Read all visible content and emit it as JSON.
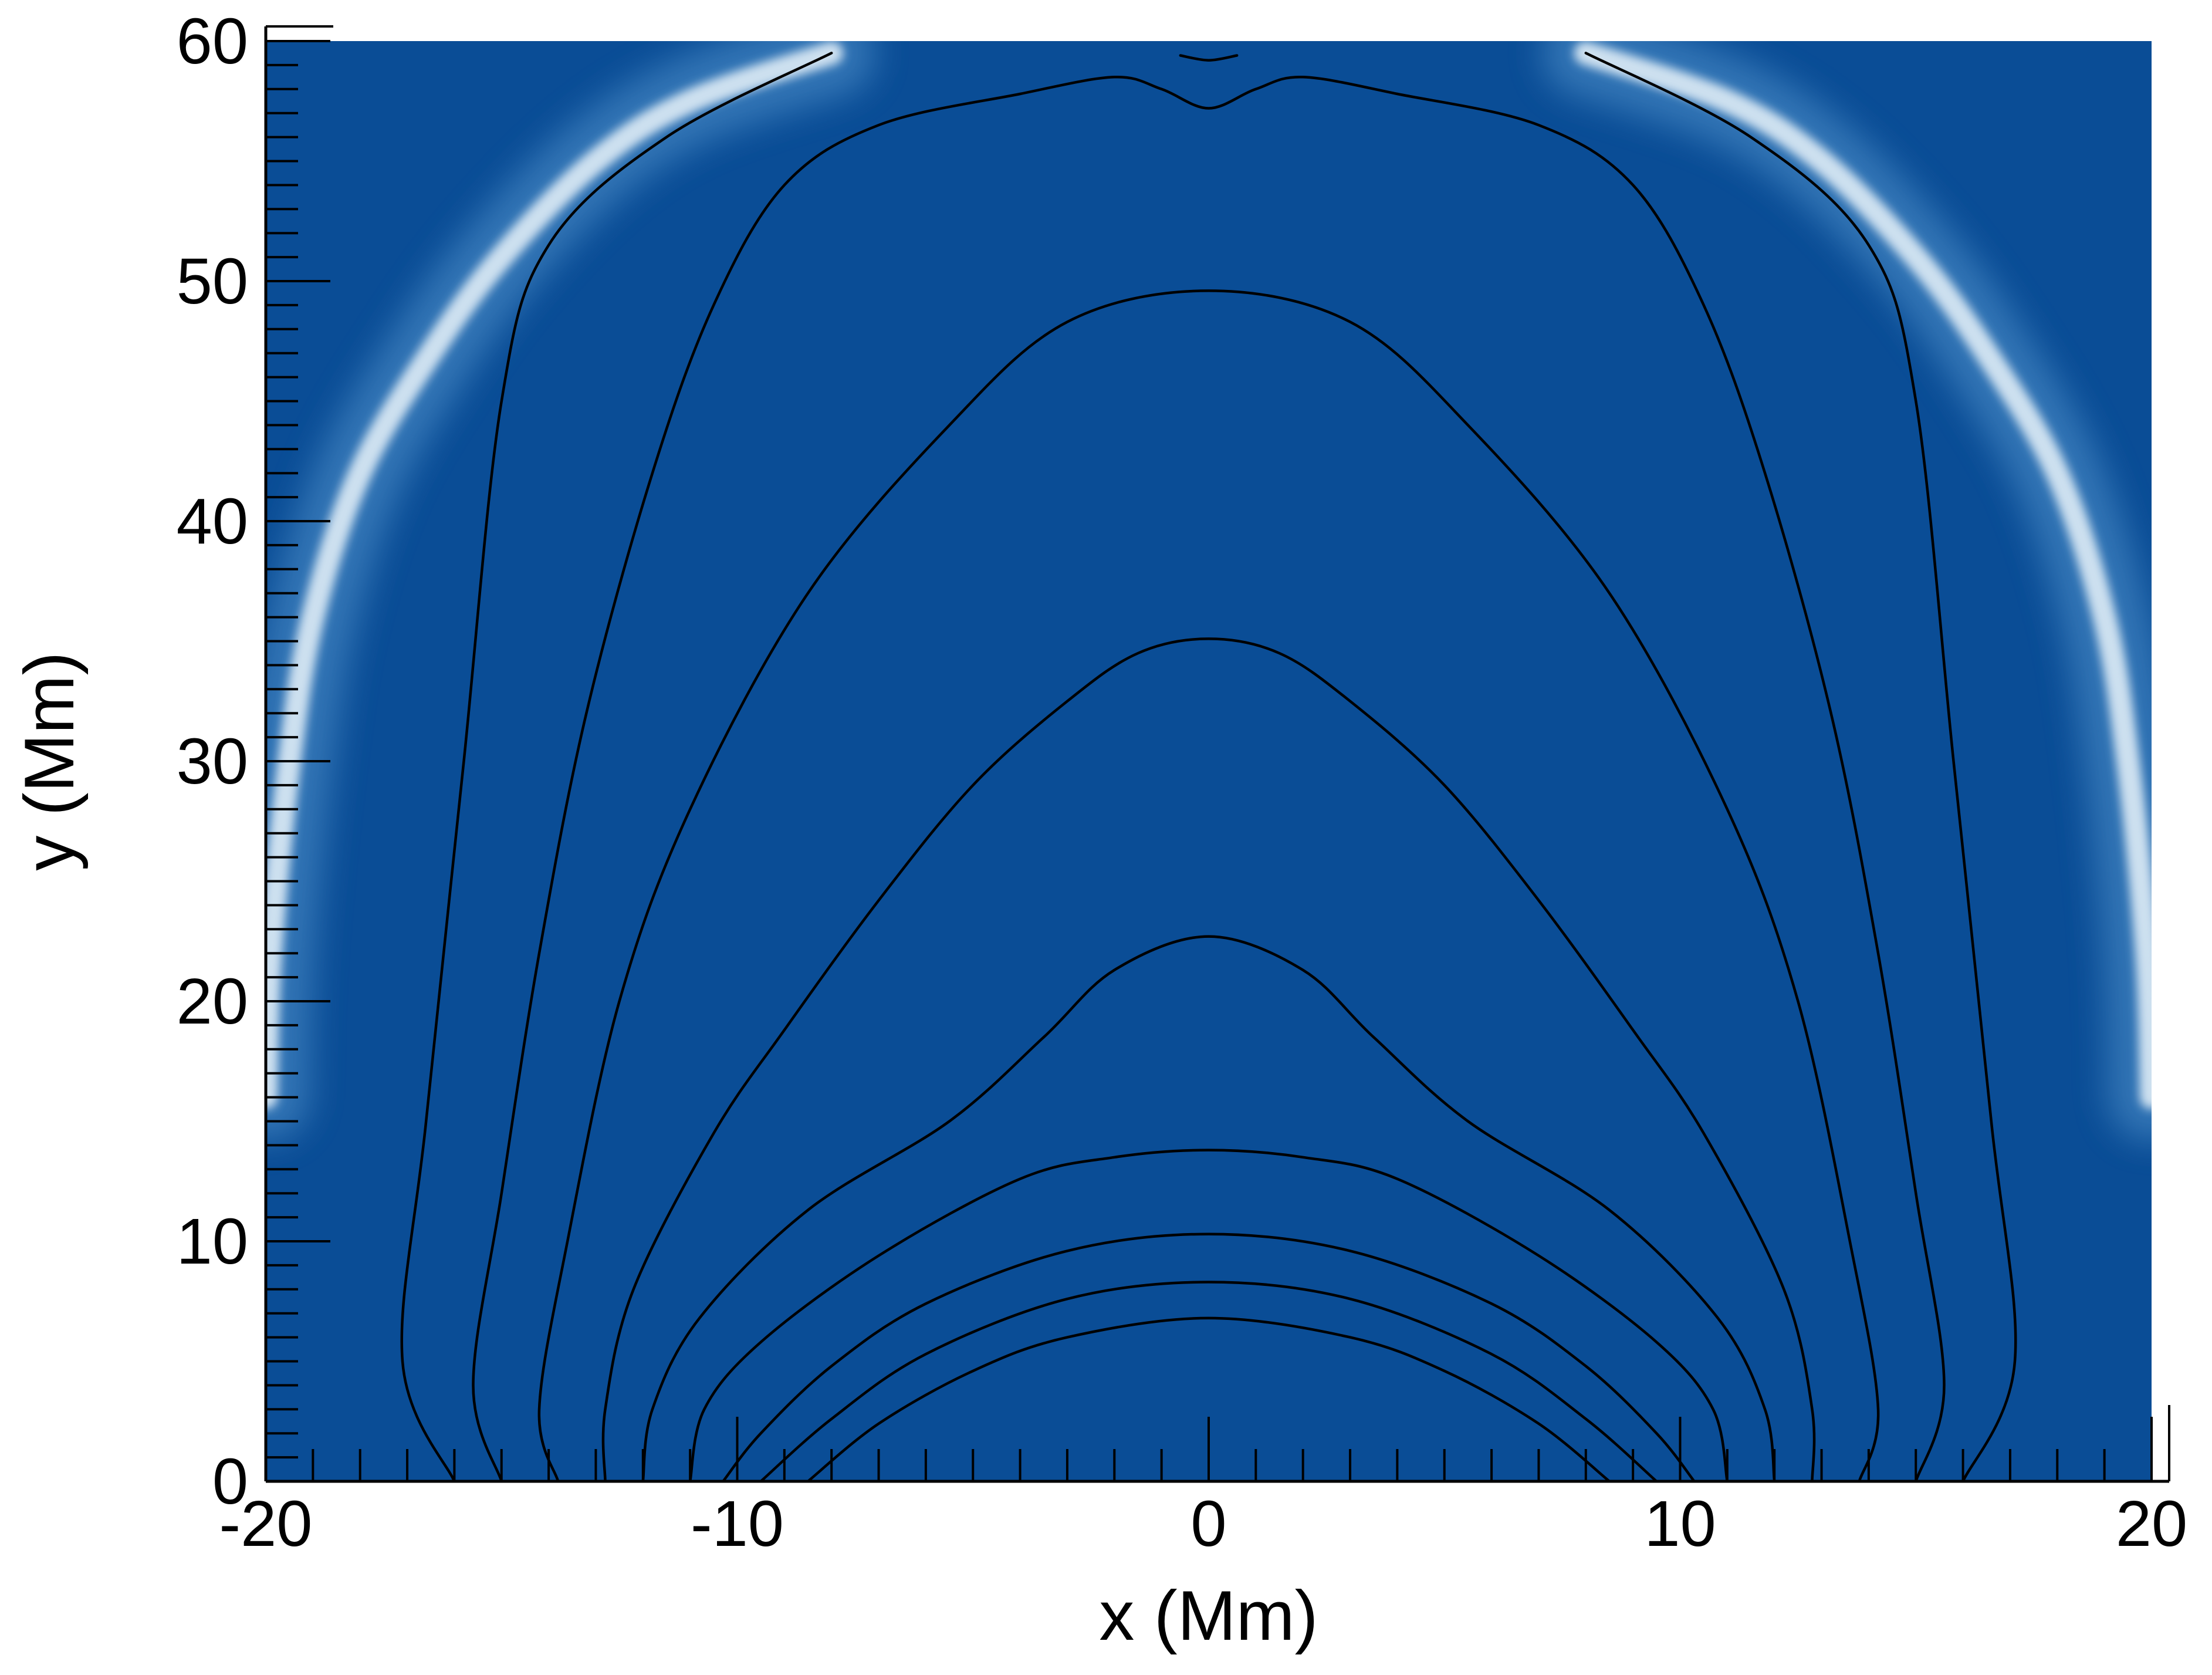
{
  "chart_data": {
    "type": "heatmap",
    "title": "",
    "xlabel": "x (Mm)",
    "ylabel": "y (Mm)",
    "xlim": [
      -20,
      20
    ],
    "ylim": [
      0,
      60
    ],
    "x_ticks": [
      -20,
      -10,
      0,
      10,
      20
    ],
    "y_ticks": [
      0,
      10,
      20,
      30,
      40,
      50,
      60
    ],
    "x_tick_labels": [
      "-20",
      "-10",
      "0",
      "10",
      "20"
    ],
    "y_tick_labels": [
      "0",
      "10",
      "20",
      "30",
      "40",
      "50",
      "60"
    ],
    "x_minor_step": 1,
    "y_minor_step": 1,
    "grid": false,
    "colormap": {
      "background": "#0a4d96",
      "highlight": "#d6e6f3",
      "description_colors": [
        "#0a4d96",
        "#3f82c0",
        "#d6e6f3"
      ]
    },
    "bright_band": {
      "left": [
        {
          "x": -20.0,
          "y": 16
        },
        {
          "x": -19.9,
          "y": 22
        },
        {
          "x": -19.5,
          "y": 30
        },
        {
          "x": -19.0,
          "y": 36
        },
        {
          "x": -18.0,
          "y": 42
        },
        {
          "x": -16.5,
          "y": 47
        },
        {
          "x": -15.0,
          "y": 51
        },
        {
          "x": -13.0,
          "y": 55
        },
        {
          "x": -11.0,
          "y": 57.5
        },
        {
          "x": -8.0,
          "y": 59.5
        }
      ],
      "right": [
        {
          "x": 20.0,
          "y": 16
        },
        {
          "x": 19.9,
          "y": 22
        },
        {
          "x": 19.5,
          "y": 30
        },
        {
          "x": 19.0,
          "y": 36
        },
        {
          "x": 18.0,
          "y": 42
        },
        {
          "x": 16.5,
          "y": 47
        },
        {
          "x": 15.0,
          "y": 51
        },
        {
          "x": 13.0,
          "y": 55
        },
        {
          "x": 11.0,
          "y": 57.5
        },
        {
          "x": 8.0,
          "y": 59.5
        }
      ]
    },
    "field_lines_color": "#000000",
    "field_lines": [
      {
        "points": [
          [
            -8.5,
            0
          ],
          [
            -7,
            2.4
          ],
          [
            -5,
            4.6
          ],
          [
            -3,
            6.0
          ],
          [
            0,
            6.8
          ],
          [
            3,
            6.0
          ],
          [
            5,
            4.6
          ],
          [
            7,
            2.4
          ],
          [
            8.5,
            0
          ]
        ]
      },
      {
        "points": [
          [
            -9.5,
            0
          ],
          [
            -8,
            2.6
          ],
          [
            -6,
            5.3
          ],
          [
            -3,
            7.6
          ],
          [
            0,
            8.3
          ],
          [
            3,
            7.6
          ],
          [
            6,
            5.3
          ],
          [
            8,
            2.6
          ],
          [
            9.5,
            0
          ]
        ]
      },
      {
        "points": [
          [
            -10.3,
            0
          ],
          [
            -9.5,
            2.0
          ],
          [
            -8,
            4.8
          ],
          [
            -6,
            7.4
          ],
          [
            -3,
            9.6
          ],
          [
            0,
            10.3
          ],
          [
            3,
            9.6
          ],
          [
            6,
            7.4
          ],
          [
            8,
            4.8
          ],
          [
            9.5,
            2.0
          ],
          [
            10.3,
            0
          ]
        ]
      },
      {
        "points": [
          [
            -11.0,
            0
          ],
          [
            -10.7,
            3.0
          ],
          [
            -9.5,
            5.8
          ],
          [
            -7,
            9.4
          ],
          [
            -4,
            12.6
          ],
          [
            -2,
            13.5
          ],
          [
            0,
            13.8
          ],
          [
            2,
            13.5
          ],
          [
            4,
            12.6
          ],
          [
            7,
            9.4
          ],
          [
            9.5,
            5.8
          ],
          [
            10.7,
            3.0
          ],
          [
            11.0,
            0
          ]
        ]
      },
      {
        "points": [
          [
            -12.0,
            0
          ],
          [
            -11.8,
            3.0
          ],
          [
            -10.8,
            6.8
          ],
          [
            -8.5,
            11.3
          ],
          [
            -5.5,
            15.0
          ],
          [
            -3.5,
            18.5
          ],
          [
            -2,
            21.3
          ],
          [
            0,
            22.7
          ],
          [
            2,
            21.3
          ],
          [
            3.5,
            18.5
          ],
          [
            5.5,
            15.0
          ],
          [
            8.5,
            11.3
          ],
          [
            10.8,
            6.8
          ],
          [
            11.8,
            3.0
          ],
          [
            12.0,
            0
          ]
        ]
      },
      {
        "points": [
          [
            -12.8,
            0
          ],
          [
            -12.8,
            3.0
          ],
          [
            -12.2,
            8.0
          ],
          [
            -10.5,
            14.5
          ],
          [
            -9,
            18.8
          ],
          [
            -7,
            24.2
          ],
          [
            -5,
            29.0
          ],
          [
            -3,
            32.5
          ],
          [
            -1.5,
            34.5
          ],
          [
            0,
            35.1
          ],
          [
            1.5,
            34.5
          ],
          [
            3,
            32.5
          ],
          [
            5,
            29.0
          ],
          [
            7,
            24.2
          ],
          [
            9,
            18.8
          ],
          [
            10.5,
            14.5
          ],
          [
            12.2,
            8.0
          ],
          [
            12.8,
            3.0
          ],
          [
            12.8,
            0
          ]
        ]
      },
      {
        "points": [
          [
            -13.8,
            0
          ],
          [
            -14.2,
            3.0
          ],
          [
            -13.6,
            10.0
          ],
          [
            -12.5,
            20.0
          ],
          [
            -11,
            28.0
          ],
          [
            -8.5,
            37.0
          ],
          [
            -5.5,
            44.0
          ],
          [
            -3,
            48.3
          ],
          [
            0,
            49.6
          ],
          [
            3,
            48.3
          ],
          [
            5.5,
            44.0
          ],
          [
            8.5,
            37.0
          ],
          [
            11,
            28.0
          ],
          [
            12.5,
            20.0
          ],
          [
            13.6,
            10.0
          ],
          [
            14.2,
            3.0
          ],
          [
            13.8,
            0
          ]
        ]
      },
      {
        "points": [
          [
            -15.0,
            0
          ],
          [
            -15.6,
            4.0
          ],
          [
            -15.0,
            12.0
          ],
          [
            -14.2,
            22.0
          ],
          [
            -13.2,
            32.0
          ],
          [
            -11.8,
            42.0
          ],
          [
            -10.5,
            49.0
          ],
          [
            -9,
            54.0
          ],
          [
            -7,
            56.5
          ],
          [
            -4,
            57.8
          ],
          [
            -2,
            58.5
          ],
          [
            -1,
            58.0
          ],
          [
            0,
            57.2
          ],
          [
            1,
            58.0
          ],
          [
            2,
            58.5
          ],
          [
            4,
            57.8
          ],
          [
            7,
            56.5
          ],
          [
            9,
            54.0
          ],
          [
            10.5,
            49.0
          ],
          [
            11.8,
            42.0
          ],
          [
            13.2,
            32.0
          ],
          [
            14.2,
            22.0
          ],
          [
            15.0,
            12.0
          ],
          [
            15.6,
            4.0
          ],
          [
            15.0,
            0
          ]
        ]
      },
      {
        "points": [
          [
            -16.0,
            0
          ],
          [
            -17.1,
            5.0
          ],
          [
            -16.6,
            15.0
          ],
          [
            -15.8,
            30.0
          ],
          [
            -15.0,
            45.0
          ],
          [
            -14.0,
            51.5
          ],
          [
            -11.5,
            56.0
          ],
          [
            -8,
            59.5
          ]
        ]
      },
      {
        "points": [
          [
            16.0,
            0
          ],
          [
            17.1,
            5.0
          ],
          [
            16.6,
            15.0
          ],
          [
            15.8,
            30.0
          ],
          [
            15.0,
            45.0
          ],
          [
            14.0,
            51.5
          ],
          [
            11.5,
            56.0
          ],
          [
            8,
            59.5
          ]
        ]
      },
      {
        "points": [
          [
            -0.6,
            59.4
          ],
          [
            0,
            59.2
          ],
          [
            0.6,
            59.4
          ]
        ]
      }
    ]
  }
}
